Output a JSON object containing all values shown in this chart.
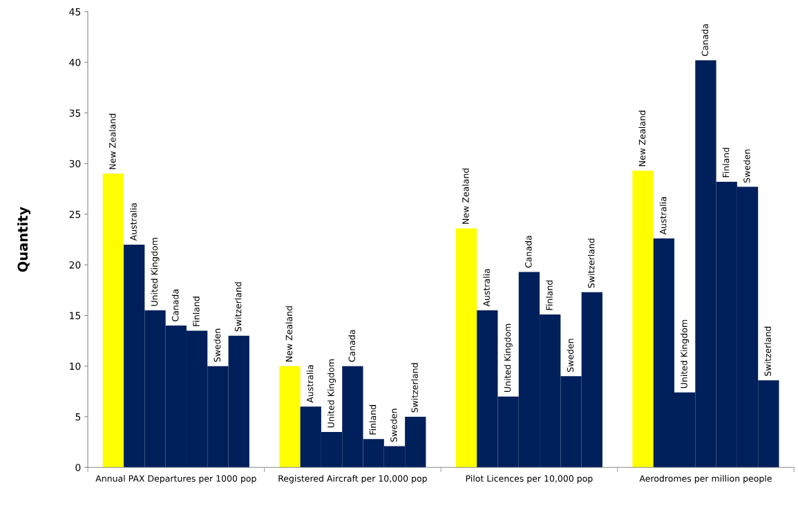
{
  "chart_data": {
    "type": "bar",
    "ylabel": "Quantity",
    "categories": [
      "Annual PAX Departures per 1000 pop",
      "Registered Aircraft per 10,000 pop",
      "Pilot Licences per 10,000 pop",
      "Aerodromes per million people"
    ],
    "series": [
      {
        "name": "New Zealand",
        "color": "#ffff00",
        "values": [
          29,
          10,
          23.6,
          29.3
        ]
      },
      {
        "name": "Australia",
        "color": "#00205b",
        "values": [
          22,
          6,
          15.5,
          22.6
        ]
      },
      {
        "name": "United Kingdom",
        "color": "#00205b",
        "values": [
          15.5,
          3.5,
          7,
          7.4
        ]
      },
      {
        "name": "Canada",
        "color": "#00205b",
        "values": [
          14,
          10,
          19.3,
          40.2
        ]
      },
      {
        "name": "Finland",
        "color": "#00205b",
        "values": [
          13.5,
          2.8,
          15.1,
          28.2
        ]
      },
      {
        "name": "Sweden",
        "color": "#00205b",
        "values": [
          10,
          2.1,
          9,
          27.7
        ]
      },
      {
        "name": "Switzerland",
        "color": "#00205b",
        "values": [
          13,
          5,
          17.3,
          8.6
        ]
      }
    ],
    "ylim": [
      0,
      45
    ],
    "yticks": [
      0,
      5,
      10,
      15,
      20,
      25,
      30,
      35,
      40,
      45
    ],
    "grid": false,
    "legend": false
  }
}
